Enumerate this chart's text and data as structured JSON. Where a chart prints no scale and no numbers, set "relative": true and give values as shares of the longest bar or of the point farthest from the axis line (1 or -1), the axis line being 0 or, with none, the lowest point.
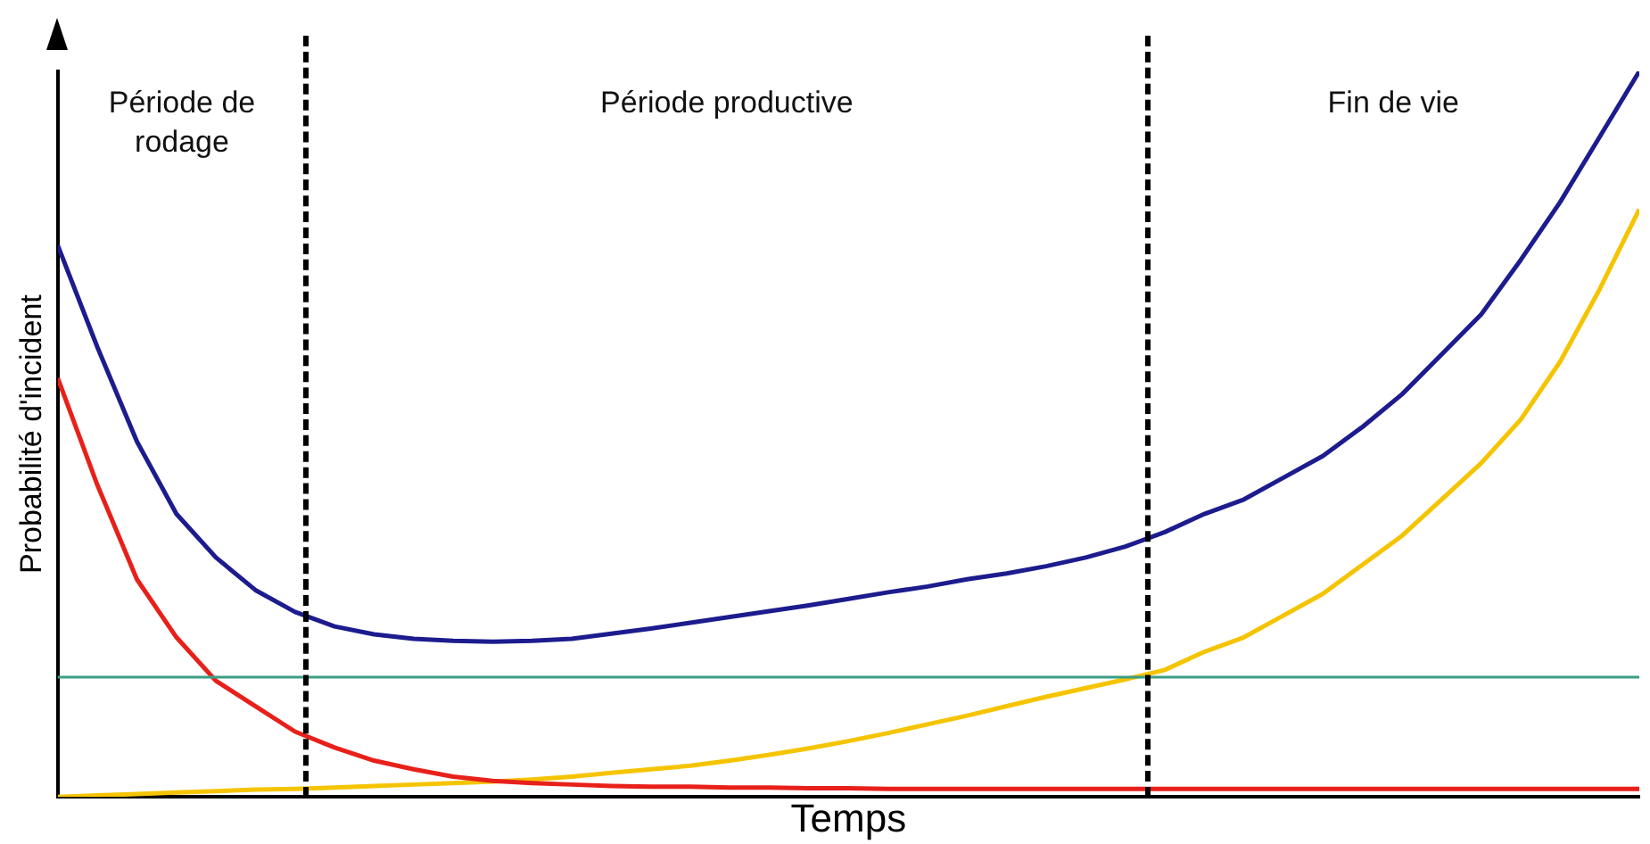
{
  "chart_data": {
    "type": "line",
    "relative": true,
    "xlabel": "Temps",
    "ylabel": "Probabilité d'incident",
    "grid": false,
    "legend": false,
    "marker": "none",
    "line_style": "solid",
    "categories": [
      null,
      null,
      null,
      null,
      null,
      null,
      null,
      null,
      null,
      null,
      null,
      null,
      null,
      null,
      null,
      null,
      null,
      null,
      null,
      null,
      null,
      null,
      null,
      null,
      null,
      null,
      null,
      null,
      null,
      null,
      null,
      null,
      null,
      null,
      null,
      null,
      null,
      null,
      null,
      null,
      null
    ],
    "series": [
      {
        "color": "#1c1c8e",
        "values": [
          0.76,
          0.62,
          0.49,
          0.39,
          0.33,
          0.285,
          0.255,
          0.235,
          0.224,
          0.218,
          0.215,
          0.214,
          0.215,
          0.218,
          0.225,
          0.232,
          0.24,
          0.248,
          0.256,
          0.264,
          0.273,
          0.282,
          0.29,
          0.3,
          0.308,
          0.318,
          0.33,
          0.345,
          0.365,
          0.39,
          0.41,
          0.44,
          0.47,
          0.51,
          0.555,
          0.61,
          0.665,
          0.74,
          0.82,
          0.91,
          1
        ]
      },
      {
        "color": "#e8201a",
        "values": [
          0.577,
          0.43,
          0.3,
          0.22,
          0.16,
          0.125,
          0.09,
          0.068,
          0.05,
          0.038,
          0.028,
          0.022,
          0.019,
          0.017,
          0.015,
          0.014,
          0.014,
          0.013,
          0.013,
          0.012,
          0.012,
          0.011,
          0.011,
          0.011,
          0.011,
          0.011,
          0.011,
          0.011,
          0.011,
          0.011,
          0.011,
          0.011,
          0.011,
          0.011,
          0.011,
          0.011,
          0.011,
          0.011,
          0.011,
          0.011,
          0.011
        ]
      },
      {
        "color": "#f5c400",
        "values": [
          0,
          0.002,
          0.004,
          0.006,
          0.008,
          0.01,
          0.011,
          0.013,
          0.015,
          0.017,
          0.019,
          0.021,
          0.024,
          0.028,
          0.033,
          0.038,
          0.043,
          0.05,
          0.058,
          0.067,
          0.077,
          0.088,
          0.1,
          0.112,
          0.125,
          0.138,
          0.15,
          0.162,
          0.175,
          0.2,
          0.22,
          0.25,
          0.28,
          0.32,
          0.36,
          0.41,
          0.46,
          0.52,
          0.6,
          0.7,
          0.81
        ]
      }
    ],
    "ref_lines": [
      {
        "axis": "y",
        "value": 0.165,
        "color": "#3a9e84",
        "line_style": "solid"
      }
    ],
    "annotations": [
      "Période de rodage",
      "Période productive",
      "Fin de vie"
    ]
  }
}
